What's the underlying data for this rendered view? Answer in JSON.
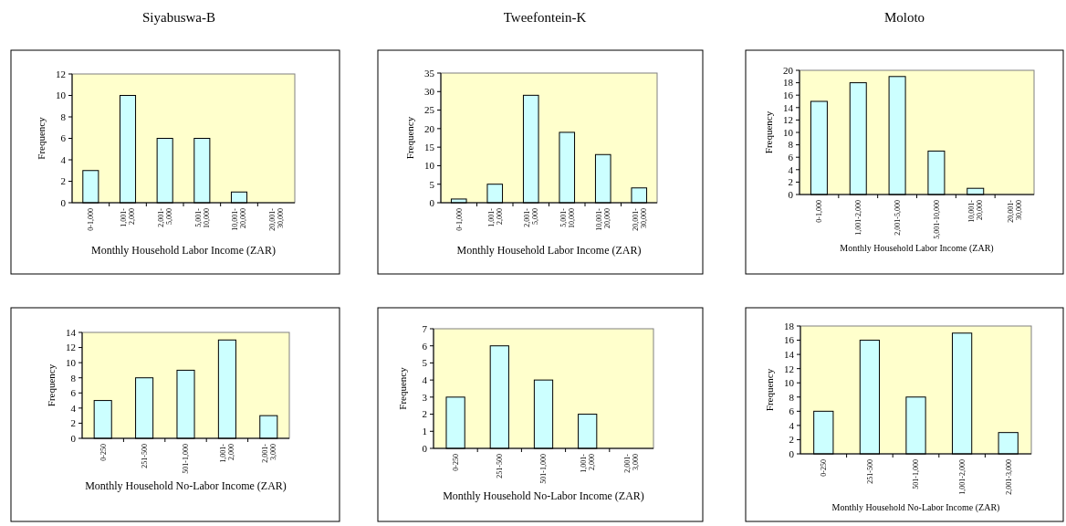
{
  "chart_data": [
    {
      "type": "bar",
      "title": "Siyabuswa-B",
      "xlabel": "Monthly Household Labor Income (ZAR)",
      "ylabel": "Frequency",
      "categories": [
        "0-1,000",
        "1,001-\n2,000",
        "2,001-\n5,000",
        "5,001-\n10,000",
        "10,001-\n20,000",
        "20,001-\n30,000"
      ],
      "values": [
        3,
        10,
        6,
        6,
        1,
        0
      ],
      "color": "#ccffff",
      "ylim": [
        0,
        12
      ],
      "yticks": [
        0,
        2,
        4,
        6,
        8,
        10,
        12
      ]
    },
    {
      "type": "bar",
      "title": "Tweefontein-K",
      "xlabel": "Monthly Household Labor Income (ZAR)",
      "ylabel": "Frequency",
      "categories": [
        "0-1,000",
        "1,001-\n2,000",
        "2,001-\n5,000",
        "5,001-\n10,000",
        "10,001-\n20,000",
        "20,001-\n30,000"
      ],
      "values": [
        1,
        5,
        29,
        19,
        13,
        4
      ],
      "color": "#ccffff",
      "ylim": [
        0,
        35
      ],
      "yticks": [
        0,
        5,
        10,
        15,
        20,
        25,
        30,
        35
      ]
    },
    {
      "type": "bar",
      "title": "Moloto",
      "xlabel": "Monthly Household Labor Income (ZAR)",
      "ylabel": "Frequency",
      "categories": [
        "0-1,000",
        "1,001-2,000",
        "2,001-5,000",
        "5,001-10,000",
        "10,001-\n20,000",
        "20,001-\n30,000"
      ],
      "values": [
        15,
        18,
        19,
        7,
        1,
        0
      ],
      "color": "#ccffff",
      "ylim": [
        0,
        20
      ],
      "yticks": [
        0,
        2,
        4,
        6,
        8,
        10,
        12,
        14,
        16,
        18,
        20
      ]
    },
    {
      "type": "bar",
      "xlabel": "Monthly Household No-Labor Income (ZAR)",
      "ylabel": "Frequency",
      "categories": [
        "0-250",
        "251-500",
        "501-1,000",
        "1,001-\n2,000",
        "2,001-\n3,000"
      ],
      "values": [
        5,
        8,
        9,
        13,
        3
      ],
      "color": "#ccffff",
      "ylim": [
        0,
        14
      ],
      "yticks": [
        0,
        2,
        4,
        6,
        8,
        10,
        12,
        14
      ]
    },
    {
      "type": "bar",
      "xlabel": "Monthly Household No-Labor Income (ZAR)",
      "ylabel": "Frequency",
      "categories": [
        "0-250",
        "251-500",
        "501-1,000",
        "1,001-\n2,000",
        "2,001-\n3,000"
      ],
      "values": [
        3,
        6,
        4,
        2,
        0
      ],
      "color": "#ccffff",
      "ylim": [
        0,
        7
      ],
      "yticks": [
        0,
        1,
        2,
        3,
        4,
        5,
        6,
        7
      ]
    },
    {
      "type": "bar",
      "xlabel": "Monthly Household No-Labor Income (ZAR)",
      "ylabel": "Frequency",
      "categories": [
        "0-250",
        "251-500",
        "501-1,000",
        "1,001-2,000",
        "2,001-3,000"
      ],
      "values": [
        6,
        16,
        8,
        17,
        3
      ],
      "color": "#ccffff",
      "ylim": [
        0,
        18
      ],
      "yticks": [
        0,
        2,
        4,
        6,
        8,
        10,
        12,
        14,
        16,
        18
      ]
    }
  ]
}
